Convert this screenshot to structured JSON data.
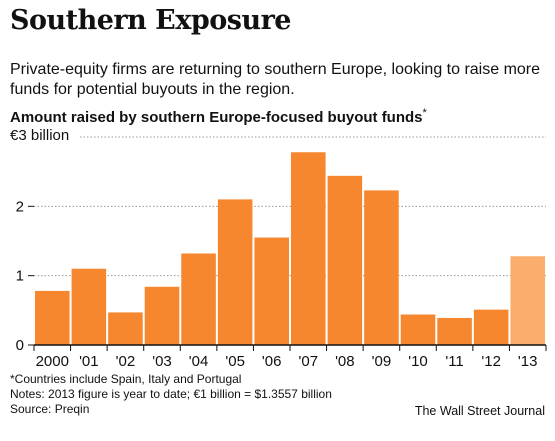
{
  "header": {
    "title": "Southern Exposure",
    "subtitle": "Private-equity firms are returning to southern Europe, looking to raise more funds for potential buyouts in the region."
  },
  "chart_data": {
    "type": "bar",
    "title": "Amount raised by southern Europe-focused buyout funds",
    "title_note_marker": "*",
    "ylabel": "€3 billion",
    "categories": [
      "2000",
      "'01",
      "'02",
      "'03",
      "'04",
      "'05",
      "'06",
      "'07",
      "'08",
      "'09",
      "'10",
      "'11",
      "'12",
      "'13"
    ],
    "values": [
      0.78,
      1.1,
      0.47,
      0.84,
      1.32,
      2.1,
      1.55,
      2.78,
      2.44,
      2.23,
      0.44,
      0.39,
      0.51,
      1.28
    ],
    "highlight": [
      false,
      false,
      false,
      false,
      false,
      false,
      false,
      false,
      false,
      false,
      false,
      false,
      false,
      true
    ],
    "ylim": [
      0,
      3
    ],
    "yticks": [
      0,
      1,
      2
    ],
    "ytick_labels": [
      "0",
      "1",
      "2"
    ],
    "grid": true,
    "colors": {
      "bar": "#f7872e",
      "bar_highlight": "#fbae6b",
      "grid": "#999999",
      "axis": "#111111"
    }
  },
  "footer": {
    "note_countries": "*Countries include Spain, Italy and Portugal",
    "note_year": "Notes: 2013 figure is year to date; €1 billion = $1.3557 billion",
    "source": "Source: Preqin",
    "credit": "The Wall Street Journal"
  }
}
